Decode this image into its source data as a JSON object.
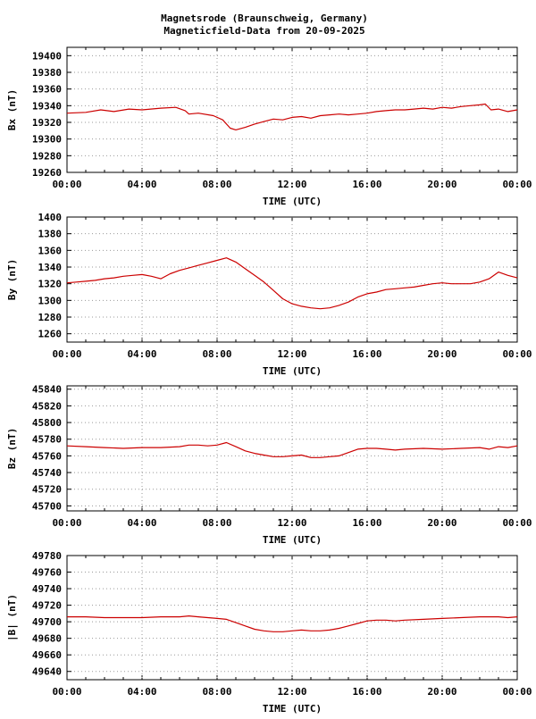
{
  "title": {
    "line1": "Magnetsrode (Braunschweig, Germany)",
    "line2": "Magneticfield-Data from 20-09-2025"
  },
  "colors": {
    "trace": "#cc0000",
    "grid": "#999999",
    "frame": "#000000",
    "background": "#ffffff"
  },
  "chart_data": [
    {
      "type": "line",
      "xlabel": "TIME (UTC)",
      "ylabel": "Bx (nT)",
      "xlim": [
        0,
        24
      ],
      "xticks": [
        "00:00",
        "04:00",
        "08:00",
        "12:00",
        "16:00",
        "20:00",
        "00:00"
      ],
      "ylim": [
        19260,
        19410
      ],
      "yticks": [
        19260,
        19280,
        19300,
        19320,
        19340,
        19360,
        19380,
        19400
      ],
      "grid": true,
      "x": [
        0,
        1,
        1.8,
        2.5,
        3.3,
        4,
        5,
        5.8,
        6.3,
        6.5,
        7,
        7.8,
        8.3,
        8.7,
        9,
        9.5,
        10,
        10.5,
        11,
        11.5,
        12,
        12.5,
        13,
        13.5,
        14,
        14.5,
        15,
        15.5,
        16,
        16.5,
        17,
        17.5,
        18,
        18.5,
        19,
        19.5,
        20,
        20.5,
        21,
        21.5,
        22,
        22.3,
        22.6,
        23,
        23.5,
        24
      ],
      "y": [
        19331,
        19332,
        19335,
        19333,
        19336,
        19335,
        19337,
        19338,
        19334,
        19330,
        19331,
        19328,
        19323,
        19313,
        19311,
        19314,
        19318,
        19321,
        19324,
        19323,
        19326,
        19327,
        19325,
        19328,
        19329,
        19330,
        19329,
        19330,
        19331,
        19333,
        19334,
        19335,
        19335,
        19336,
        19337,
        19336,
        19338,
        19337,
        19339,
        19340,
        19341,
        19342,
        19335,
        19336,
        19333,
        19335
      ]
    },
    {
      "type": "line",
      "xlabel": "TIME (UTC)",
      "ylabel": "By (nT)",
      "xlim": [
        0,
        24
      ],
      "xticks": [
        "00:00",
        "04:00",
        "08:00",
        "12:00",
        "16:00",
        "20:00",
        "00:00"
      ],
      "ylim": [
        1250,
        1400
      ],
      "yticks": [
        1260,
        1280,
        1300,
        1320,
        1340,
        1360,
        1380,
        1400
      ],
      "grid": true,
      "x": [
        0,
        0.5,
        1,
        1.5,
        2,
        2.5,
        3,
        3.5,
        4,
        4.5,
        5,
        5.5,
        6,
        6.5,
        7,
        7.5,
        8,
        8.5,
        9,
        9.5,
        10,
        10.5,
        11,
        11.5,
        12,
        12.5,
        13,
        13.5,
        14,
        14.5,
        15,
        15.5,
        16,
        16.5,
        17,
        17.5,
        18,
        18.5,
        19,
        19.5,
        20,
        20.5,
        21,
        21.5,
        22,
        22.5,
        23,
        23.5,
        24
      ],
      "y": [
        1321,
        1322,
        1323,
        1324,
        1326,
        1327,
        1329,
        1330,
        1331,
        1329,
        1326,
        1332,
        1336,
        1339,
        1342,
        1345,
        1348,
        1351,
        1346,
        1338,
        1330,
        1322,
        1312,
        1302,
        1296,
        1293,
        1291,
        1290,
        1291,
        1294,
        1298,
        1304,
        1308,
        1310,
        1313,
        1314,
        1315,
        1316,
        1318,
        1320,
        1321,
        1320,
        1320,
        1320,
        1322,
        1326,
        1334,
        1330,
        1327
      ]
    },
    {
      "type": "line",
      "xlabel": "TIME (UTC)",
      "ylabel": "Bz (nT)",
      "xlim": [
        0,
        24
      ],
      "xticks": [
        "00:00",
        "04:00",
        "08:00",
        "12:00",
        "16:00",
        "20:00",
        "00:00"
      ],
      "ylim": [
        45694,
        45844
      ],
      "yticks": [
        45700,
        45720,
        45740,
        45760,
        45780,
        45800,
        45820,
        45840
      ],
      "grid": true,
      "x": [
        0,
        1,
        2,
        3,
        4,
        5,
        6,
        6.5,
        7,
        7.5,
        8,
        8.5,
        9,
        9.5,
        10,
        10.5,
        11,
        11.5,
        12,
        12.5,
        13,
        13.5,
        14,
        14.5,
        15,
        15.5,
        16,
        16.5,
        17,
        17.5,
        18,
        19,
        20,
        21,
        22,
        22.5,
        23,
        23.5,
        24
      ],
      "y": [
        45772,
        45771,
        45770,
        45769,
        45770,
        45770,
        45771,
        45773,
        45773,
        45772,
        45773,
        45776,
        45771,
        45766,
        45763,
        45761,
        45759,
        45759,
        45760,
        45761,
        45758,
        45758,
        45759,
        45760,
        45764,
        45768,
        45769,
        45769,
        45768,
        45767,
        45768,
        45769,
        45768,
        45769,
        45770,
        45768,
        45771,
        45770,
        45772
      ]
    },
    {
      "type": "line",
      "xlabel": "TIME (UTC)",
      "ylabel": "|B| (nT)",
      "xlim": [
        0,
        24
      ],
      "xticks": [
        "00:00",
        "04:00",
        "08:00",
        "12:00",
        "16:00",
        "20:00",
        "00:00"
      ],
      "ylim": [
        49630,
        49780
      ],
      "yticks": [
        49640,
        49660,
        49680,
        49700,
        49720,
        49740,
        49760,
        49780
      ],
      "grid": true,
      "x": [
        0,
        1,
        2,
        3,
        4,
        5,
        6,
        6.5,
        7,
        7.5,
        8,
        8.5,
        9,
        9.5,
        10,
        10.5,
        11,
        11.5,
        12,
        12.5,
        13,
        13.5,
        14,
        14.5,
        15,
        15.5,
        16,
        16.5,
        17,
        17.5,
        18,
        19,
        20,
        21,
        22,
        22.5,
        23,
        23.5,
        24
      ],
      "y": [
        49706,
        49706,
        49705,
        49705,
        49705,
        49706,
        49706,
        49707,
        49706,
        49705,
        49704,
        49703,
        49699,
        49695,
        49691,
        49689,
        49688,
        49688,
        49689,
        49690,
        49689,
        49689,
        49690,
        49692,
        49695,
        49698,
        49701,
        49702,
        49702,
        49701,
        49702,
        49703,
        49704,
        49705,
        49706,
        49706,
        49706,
        49705,
        49706
      ]
    }
  ]
}
